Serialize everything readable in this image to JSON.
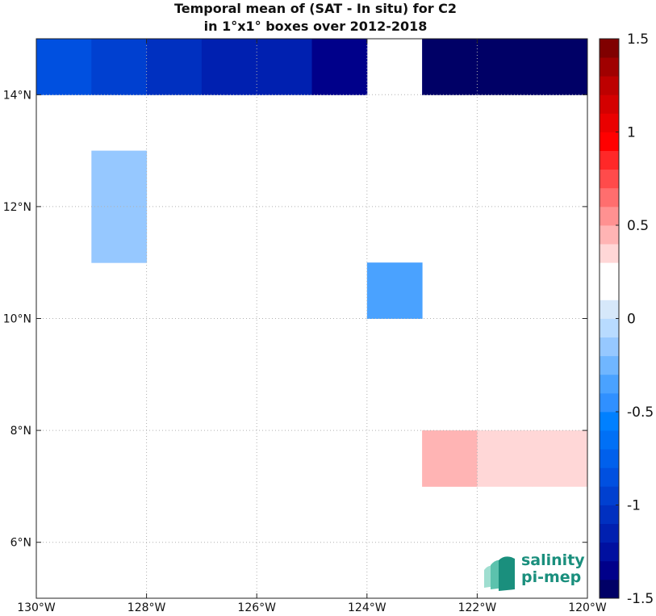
{
  "chart_data": {
    "type": "heatmap",
    "title": [
      "Temporal mean of (SAT - In situ) for C2",
      "in 1°x1° boxes over 2012-2018"
    ],
    "x_axis": {
      "range": [
        -130,
        -120
      ],
      "ticks": [
        -130,
        -128,
        -126,
        -124,
        -122,
        -120
      ],
      "tick_labels": [
        "130°W",
        "128°W",
        "126°W",
        "124°W",
        "122°W",
        "120°W"
      ]
    },
    "y_axis": {
      "range": [
        5,
        15
      ],
      "ticks": [
        6,
        8,
        10,
        12,
        14
      ],
      "tick_labels": [
        "6°N",
        "8°N",
        "10°N",
        "12°N",
        "14°N"
      ]
    },
    "grid": "dotted",
    "colorbar": {
      "range": [
        -1.5,
        1.5
      ],
      "levels": 30,
      "ticks": [
        1.5,
        1,
        0.5,
        0,
        -0.5,
        -1,
        -1.5
      ],
      "tick_labels": [
        "1.5",
        "1",
        "0.5",
        "0",
        "-0.5",
        "-1",
        "-1.5"
      ],
      "colors": [
        "#000066",
        "#00008a",
        "#0010a0",
        "#0020b0",
        "#0030c0",
        "#0040d0",
        "#0050e0",
        "#0060ec",
        "#0070f6",
        "#0080ff",
        "#3090ff",
        "#4aa2ff",
        "#70b6ff",
        "#96c8ff",
        "#b8dbff",
        "#d6e8fa",
        "#ffffff",
        "#ffffff",
        "#ffd7d7",
        "#ffb4b4",
        "#ff9191",
        "#ff6e6e",
        "#ff4b4b",
        "#ff2828",
        "#ff0000",
        "#ea0000",
        "#d40000",
        "#bd0000",
        "#a00000",
        "#800000"
      ]
    },
    "cells": [
      {
        "lon": -130,
        "lat": 14,
        "value": -0.8
      },
      {
        "lon": -129,
        "lat": 14,
        "value": -0.95
      },
      {
        "lon": -128,
        "lat": 14,
        "value": -1.05
      },
      {
        "lon": -127,
        "lat": 14,
        "value": -1.2
      },
      {
        "lon": -126,
        "lat": 14,
        "value": -1.2
      },
      {
        "lon": -125,
        "lat": 14,
        "value": -1.3
      },
      {
        "lon": -123,
        "lat": 14,
        "value": -1.5
      },
      {
        "lon": -122,
        "lat": 14,
        "value": -1.5
      },
      {
        "lon": -121,
        "lat": 14,
        "value": -1.5
      },
      {
        "lon": -129,
        "lat": 12,
        "value": -0.1
      },
      {
        "lon": -129,
        "lat": 11,
        "value": -0.1
      },
      {
        "lon": -126,
        "lat": 11,
        "value": 0.1
      },
      {
        "lon": -126,
        "lat": 10,
        "value": 0.1
      },
      {
        "lon": -125,
        "lat": 10,
        "value": 0.1
      },
      {
        "lon": -124,
        "lat": 10,
        "value": -0.35
      },
      {
        "lon": -125,
        "lat": 7,
        "value": 0.1
      },
      {
        "lon": -123,
        "lat": 7,
        "value": 0.45
      },
      {
        "lon": -122,
        "lat": 7,
        "value": 0.3
      },
      {
        "lon": -121,
        "lat": 7,
        "value": 0.3
      },
      {
        "lon": -126,
        "lat": 5,
        "value": 0.2
      },
      {
        "lon": -125,
        "lat": 5,
        "value": 0.2
      }
    ]
  },
  "logo": {
    "line1": "salinity",
    "line2": "pi-mep"
  }
}
